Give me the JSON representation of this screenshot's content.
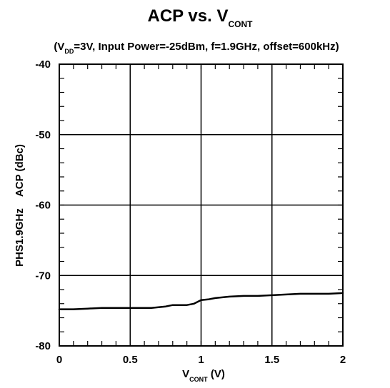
{
  "chart_data": {
    "type": "line",
    "title": {
      "main": "ACP  vs.  V",
      "sub": "CONT"
    },
    "subtitle": {
      "prefix": "(V",
      "sub": "DD",
      "rest": "=3V, Input Power=-25dBm, f=1.9GHz, offset=600kHz)"
    },
    "xlabel": {
      "main": "V",
      "sub": "CONT",
      "unit": " (V)"
    },
    "ylabel": "PHS1.9GHz    ACP (dBc)",
    "xlim": [
      0,
      2
    ],
    "ylim": [
      -80,
      -40
    ],
    "x_ticks": [
      {
        "value": 0,
        "label": "0"
      },
      {
        "value": 0.5,
        "label": "0.5"
      },
      {
        "value": 1,
        "label": "1"
      },
      {
        "value": 1.5,
        "label": "1.5"
      },
      {
        "value": 2,
        "label": "2"
      }
    ],
    "y_ticks": [
      {
        "value": -40,
        "label": "-40"
      },
      {
        "value": -50,
        "label": "-50"
      },
      {
        "value": -60,
        "label": "-60"
      },
      {
        "value": -70,
        "label": "-70"
      },
      {
        "value": -80,
        "label": "-80"
      }
    ],
    "x_minor_step": 0.1,
    "y_minor_step": 2,
    "grid": true,
    "line_color": "#000000",
    "series": [
      {
        "x": [
          0,
          0.1,
          0.2,
          0.3,
          0.4,
          0.5,
          0.6,
          0.65,
          0.7,
          0.75,
          0.8,
          0.85,
          0.9,
          0.95,
          1.0,
          1.05,
          1.1,
          1.2,
          1.3,
          1.4,
          1.5,
          1.6,
          1.7,
          1.8,
          1.9,
          2.0
        ],
        "y": [
          -74.8,
          -74.8,
          -74.7,
          -74.6,
          -74.6,
          -74.6,
          -74.6,
          -74.6,
          -74.5,
          -74.4,
          -74.2,
          -74.2,
          -74.2,
          -74.0,
          -73.5,
          -73.4,
          -73.2,
          -73.0,
          -72.9,
          -72.9,
          -72.8,
          -72.7,
          -72.6,
          -72.6,
          -72.6,
          -72.5
        ]
      }
    ]
  }
}
